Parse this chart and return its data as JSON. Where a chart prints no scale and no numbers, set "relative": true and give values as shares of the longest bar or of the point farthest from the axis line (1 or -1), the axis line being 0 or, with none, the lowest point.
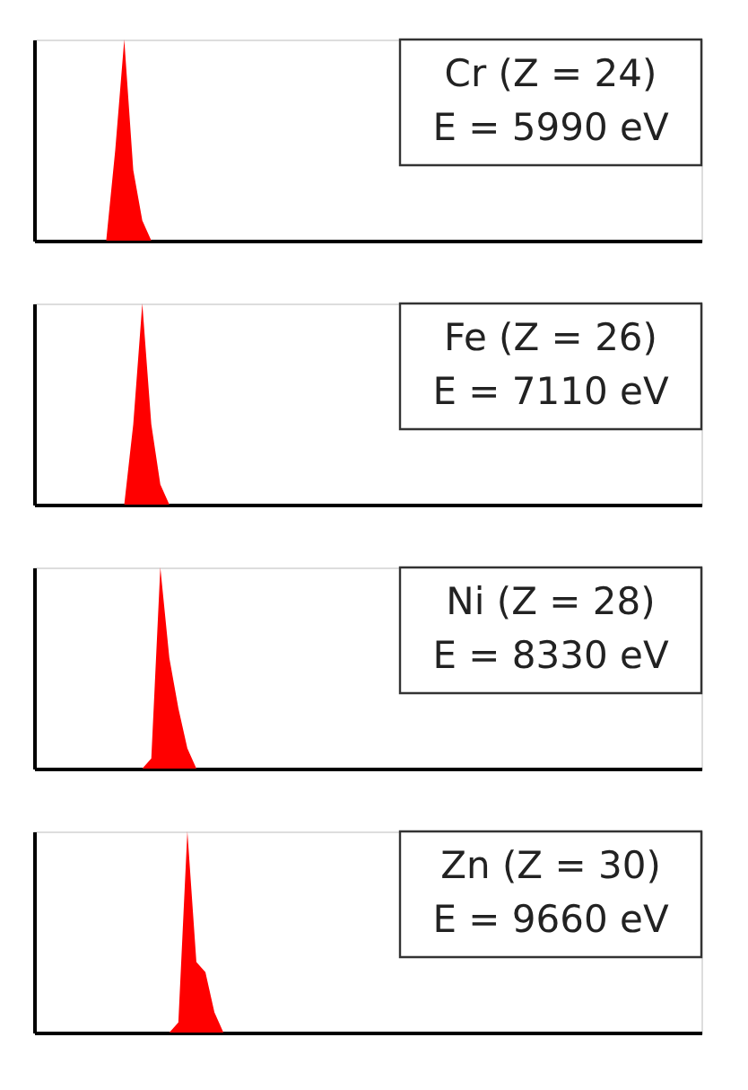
{
  "chart_data": [
    {
      "type": "area",
      "relative": true,
      "tick_labels": false,
      "grid": false,
      "annotations": [
        "Cr (Z = 24)",
        "E = 5990 eV"
      ],
      "categories": [
        null,
        null,
        null,
        null,
        null,
        null,
        null,
        null,
        null,
        null,
        null,
        null,
        null,
        null,
        null,
        null,
        null,
        null,
        null,
        null,
        null,
        null,
        null,
        null,
        null,
        null,
        null,
        null,
        null,
        null,
        null,
        null,
        null,
        null,
        null,
        null,
        null,
        null,
        null,
        null,
        null,
        null,
        null,
        null,
        null,
        null,
        null,
        null,
        null,
        null,
        null,
        null,
        null,
        null,
        null,
        null,
        null,
        null,
        null,
        null,
        null,
        null,
        null,
        null,
        null,
        null,
        null,
        null,
        null,
        null,
        null,
        null,
        null,
        null,
        null
      ],
      "series": [
        {
          "color": "#ff0000",
          "values": [
            0,
            0,
            0,
            0,
            0,
            0,
            0,
            0,
            0,
            0.45,
            1,
            0.35,
            0.1,
            0,
            0,
            0,
            0,
            0,
            0,
            0,
            0,
            0,
            0,
            0,
            0,
            0,
            0,
            0,
            0,
            0,
            0,
            0,
            0,
            0,
            0,
            0,
            0,
            0,
            0,
            0,
            0,
            0,
            0,
            0,
            0,
            0,
            0,
            0,
            0,
            0,
            0,
            0,
            0,
            0,
            0,
            0,
            0,
            0,
            0,
            0,
            0,
            0,
            0,
            0,
            0,
            0,
            0,
            0,
            0,
            0,
            0,
            0,
            0,
            0,
            0
          ]
        }
      ]
    },
    {
      "type": "area",
      "relative": true,
      "tick_labels": false,
      "grid": false,
      "annotations": [
        "Fe (Z = 26)",
        "E = 7110 eV"
      ],
      "categories": [
        null,
        null,
        null,
        null,
        null,
        null,
        null,
        null,
        null,
        null,
        null,
        null,
        null,
        null,
        null,
        null,
        null,
        null,
        null,
        null,
        null,
        null,
        null,
        null,
        null,
        null,
        null,
        null,
        null,
        null,
        null,
        null,
        null,
        null,
        null,
        null,
        null,
        null,
        null,
        null,
        null,
        null,
        null,
        null,
        null,
        null,
        null,
        null,
        null,
        null,
        null,
        null,
        null,
        null,
        null,
        null,
        null,
        null,
        null,
        null,
        null,
        null,
        null,
        null,
        null,
        null,
        null,
        null,
        null,
        null,
        null,
        null,
        null,
        null,
        null
      ],
      "series": [
        {
          "color": "#ff0000",
          "values": [
            0,
            0,
            0,
            0,
            0,
            0,
            0,
            0,
            0,
            0,
            0,
            0.4,
            1,
            0.4,
            0.1,
            0,
            0,
            0,
            0,
            0,
            0,
            0,
            0,
            0,
            0,
            0,
            0,
            0,
            0,
            0,
            0,
            0,
            0,
            0,
            0,
            0,
            0,
            0,
            0,
            0,
            0,
            0,
            0,
            0,
            0,
            0,
            0,
            0,
            0,
            0,
            0,
            0,
            0,
            0,
            0,
            0,
            0,
            0,
            0,
            0,
            0,
            0,
            0,
            0,
            0,
            0,
            0,
            0,
            0,
            0,
            0,
            0,
            0,
            0,
            0
          ]
        }
      ]
    },
    {
      "type": "area",
      "relative": true,
      "tick_labels": false,
      "grid": false,
      "annotations": [
        "Ni (Z = 28)",
        "E = 8330 eV"
      ],
      "categories": [
        null,
        null,
        null,
        null,
        null,
        null,
        null,
        null,
        null,
        null,
        null,
        null,
        null,
        null,
        null,
        null,
        null,
        null,
        null,
        null,
        null,
        null,
        null,
        null,
        null,
        null,
        null,
        null,
        null,
        null,
        null,
        null,
        null,
        null,
        null,
        null,
        null,
        null,
        null,
        null,
        null,
        null,
        null,
        null,
        null,
        null,
        null,
        null,
        null,
        null,
        null,
        null,
        null,
        null,
        null,
        null,
        null,
        null,
        null,
        null,
        null,
        null,
        null,
        null,
        null,
        null,
        null,
        null,
        null,
        null,
        null,
        null,
        null,
        null,
        null
      ],
      "series": [
        {
          "color": "#ff0000",
          "values": [
            0,
            0,
            0,
            0,
            0,
            0,
            0,
            0,
            0,
            0,
            0,
            0,
            0,
            0.05,
            1,
            0.55,
            0.3,
            0.1,
            0,
            0,
            0,
            0,
            0,
            0,
            0,
            0,
            0,
            0,
            0,
            0,
            0,
            0,
            0,
            0,
            0,
            0,
            0,
            0,
            0,
            0,
            0,
            0,
            0,
            0,
            0,
            0,
            0,
            0,
            0,
            0,
            0,
            0,
            0,
            0,
            0,
            0,
            0,
            0,
            0,
            0,
            0,
            0,
            0,
            0,
            0,
            0,
            0,
            0,
            0,
            0,
            0,
            0,
            0,
            0,
            0
          ]
        }
      ]
    },
    {
      "type": "area",
      "relative": true,
      "tick_labels": false,
      "grid": false,
      "annotations": [
        "Zn (Z = 30)",
        "E = 9660 eV"
      ],
      "categories": [
        null,
        null,
        null,
        null,
        null,
        null,
        null,
        null,
        null,
        null,
        null,
        null,
        null,
        null,
        null,
        null,
        null,
        null,
        null,
        null,
        null,
        null,
        null,
        null,
        null,
        null,
        null,
        null,
        null,
        null,
        null,
        null,
        null,
        null,
        null,
        null,
        null,
        null,
        null,
        null,
        null,
        null,
        null,
        null,
        null,
        null,
        null,
        null,
        null,
        null,
        null,
        null,
        null,
        null,
        null,
        null,
        null,
        null,
        null,
        null,
        null,
        null,
        null,
        null,
        null,
        null,
        null,
        null,
        null,
        null,
        null,
        null,
        null,
        null,
        null
      ],
      "series": [
        {
          "color": "#ff0000",
          "values": [
            0,
            0,
            0,
            0,
            0,
            0,
            0,
            0,
            0,
            0,
            0,
            0,
            0,
            0,
            0,
            0,
            0.05,
            1,
            0.35,
            0.3,
            0.1,
            0,
            0,
            0,
            0,
            0,
            0,
            0,
            0,
            0,
            0,
            0,
            0,
            0,
            0,
            0,
            0,
            0,
            0,
            0,
            0,
            0,
            0,
            0,
            0,
            0,
            0,
            0,
            0,
            0,
            0,
            0,
            0,
            0,
            0,
            0,
            0,
            0,
            0,
            0,
            0,
            0,
            0,
            0,
            0,
            0,
            0,
            0,
            0,
            0,
            0,
            0,
            0,
            0,
            0
          ]
        }
      ]
    }
  ]
}
